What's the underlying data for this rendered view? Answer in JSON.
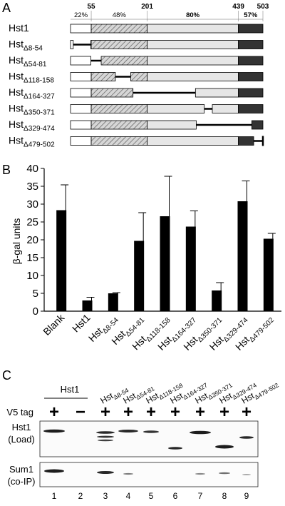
{
  "panels": {
    "a": {
      "letter": "A",
      "positions": [
        "55",
        "201",
        "439",
        "503"
      ],
      "percents": [
        "22%",
        "48%",
        "80%",
        "57%"
      ],
      "constructs": [
        {
          "name": "Hst1",
          "sub": "",
          "deleted": []
        },
        {
          "name": "Hst",
          "sub": "Δ8-54",
          "deleted": [
            8,
            54
          ]
        },
        {
          "name": "Hst",
          "sub": "Δ54-81",
          "deleted": [
            54,
            81
          ]
        },
        {
          "name": "Hst",
          "sub": "Δ118-158",
          "deleted": [
            118,
            158
          ]
        },
        {
          "name": "Hst",
          "sub": "Δ164-327",
          "deleted": [
            164,
            327
          ]
        },
        {
          "name": "Hst",
          "sub": "Δ350-371",
          "deleted": [
            350,
            371
          ]
        },
        {
          "name": "Hst",
          "sub": "Δ329-474",
          "deleted": [
            329,
            474
          ]
        },
        {
          "name": "Hst",
          "sub": "Δ479-502",
          "deleted": [
            479,
            502
          ]
        }
      ],
      "domain_colors": {
        "n_term": "#ffffff",
        "hatched": "#cfcfcf",
        "middle": "#e6e6e6",
        "c_term": "#333333"
      }
    },
    "b": {
      "letter": "B",
      "chart_data": {
        "type": "bar",
        "ylabel": "β-gal units",
        "ylim": [
          0,
          40
        ],
        "yticks": [
          0,
          5,
          10,
          15,
          20,
          25,
          30,
          35,
          40
        ],
        "categories": [
          {
            "main": "Blank",
            "sub": ""
          },
          {
            "main": "Hst1",
            "sub": ""
          },
          {
            "main": "Hst",
            "sub": "Δ8-54"
          },
          {
            "main": "Hst",
            "sub": "Δ54-81"
          },
          {
            "main": "Hst",
            "sub": "Δ118-158"
          },
          {
            "main": "Hst",
            "sub": "Δ164-327"
          },
          {
            "main": "Hst",
            "sub": "Δ350-371"
          },
          {
            "main": "Hst",
            "sub": "Δ329-474"
          },
          {
            "main": "Hst",
            "sub": "Δ479-502"
          }
        ],
        "values": [
          28.3,
          3.0,
          5.0,
          19.7,
          26.6,
          23.7,
          5.8,
          30.8,
          20.3
        ],
        "errors": [
          7.1,
          0.9,
          0.2,
          7.9,
          11.2,
          4.4,
          2.2,
          5.7,
          1.5
        ],
        "bar_color": "#000000"
      }
    },
    "c": {
      "letter": "C",
      "group_label": "Hst1",
      "tag_label": "V5 tag",
      "top_blot_label": [
        "Hst1",
        "(Load)"
      ],
      "bottom_blot_label": [
        "Sum1",
        "(co-IP)"
      ],
      "lane_headers": [
        {
          "main": "Hst",
          "sub": "Δ8-54"
        },
        {
          "main": "Hst",
          "sub": "Δ54-81"
        },
        {
          "main": "Hst",
          "sub": "Δ118-158"
        },
        {
          "main": "Hst",
          "sub": "Δ164-327"
        },
        {
          "main": "Hst",
          "sub": "Δ350-371"
        },
        {
          "main": "Hst",
          "sub": "Δ329-474"
        },
        {
          "main": "Hst",
          "sub": "Δ479-502"
        }
      ],
      "signs": [
        "+",
        "−",
        "+",
        "+",
        "+",
        "+",
        "+",
        "+",
        "+"
      ],
      "lanes": [
        "1",
        "2",
        "3",
        "4",
        "5",
        "6",
        "7",
        "8",
        "9"
      ]
    }
  }
}
